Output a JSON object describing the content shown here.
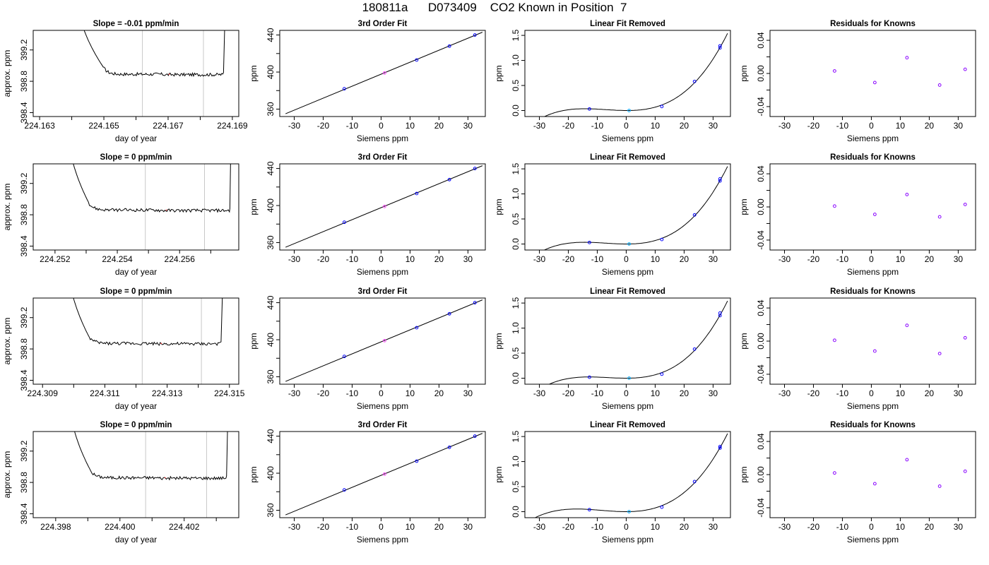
{
  "page_title": "180811a      D073409    CO2 Known in Position  7",
  "colors": {
    "frame": "#000000",
    "line": "#000000",
    "vline": "#c8c8c8",
    "blue": "#0000ff",
    "cyan": "#00aaff",
    "magenta": "#ff44ff",
    "purple": "#8800ff",
    "red": "#ff2222"
  },
  "chart_data": [
    {
      "type": "line",
      "title": "Slope =  -0.01  ppm/min",
      "xlabel": "day of year",
      "ylabel": "approx. ppm",
      "xlim": [
        224.1628,
        224.1692
      ],
      "ylim": [
        398.35,
        399.45
      ],
      "xticks": [
        224.163,
        224.164,
        224.165,
        224.166,
        224.167,
        224.168,
        224.169
      ],
      "xticklabels": [
        "224.163",
        "",
        "224.165",
        "",
        "224.167",
        "",
        "224.169"
      ],
      "yticks": [
        398.4,
        398.8,
        399.2
      ],
      "yticklabels": [
        "398.4",
        "398.8",
        "399.2"
      ],
      "vlines": [
        224.1662,
        224.1681
      ],
      "plateau": [
        224.165,
        224.1687
      ],
      "plateau_level": 398.89,
      "edge_top": 399.6
    },
    {
      "type": "scatter",
      "title": "3rd Order Fit",
      "xlabel": "Siemens ppm",
      "ylabel": "ppm",
      "xlim": [
        -35,
        36
      ],
      "ylim": [
        352,
        445
      ],
      "xticks": [
        -30,
        -20,
        -10,
        0,
        10,
        20,
        30
      ],
      "xticklabels": [
        "-30",
        "-20",
        "-10",
        "0",
        "10",
        "20",
        "30"
      ],
      "yticks": [
        360,
        380,
        400,
        420,
        440
      ],
      "yticklabels": [
        "360",
        "",
        "400",
        "",
        "440"
      ],
      "points": [
        [
          -12.7,
          382
        ],
        [
          1.2,
          399
        ],
        [
          12.3,
          413
        ],
        [
          23.6,
          428
        ],
        [
          32.4,
          440
        ]
      ],
      "fit_line": [
        [
          -33,
          355
        ],
        [
          35,
          443
        ]
      ]
    },
    {
      "type": "scatter",
      "title": "Linear Fit Removed",
      "xlabel": "Siemens ppm",
      "ylabel": "ppm",
      "xlim": [
        -35,
        36
      ],
      "ylim": [
        -0.12,
        1.6
      ],
      "xticks": [
        -30,
        -20,
        -10,
        0,
        10,
        20,
        30
      ],
      "xticklabels": [
        "-30",
        "-20",
        "-10",
        "0",
        "10",
        "20",
        "30"
      ],
      "yticks": [
        0,
        0.5,
        1.0,
        1.5
      ],
      "yticklabels": [
        "0.0",
        "0.5",
        "1.0",
        "1.5"
      ],
      "points": [
        [
          -12.7,
          0.03
        ],
        [
          1.0,
          0.0
        ],
        [
          12.3,
          0.08
        ],
        [
          23.6,
          0.58
        ],
        [
          32.4,
          1.25
        ],
        [
          32.4,
          1.29
        ]
      ],
      "curve_range": [
        -33,
        35
      ]
    },
    {
      "type": "scatter",
      "title": "Residuals for Knowns",
      "xlabel": "Siemens ppm",
      "ylabel": "ppm",
      "xlim": [
        -35,
        36
      ],
      "ylim": [
        -0.052,
        0.052
      ],
      "xticks": [
        -30,
        -20,
        -10,
        0,
        10,
        20,
        30
      ],
      "xticklabels": [
        "-30",
        "-20",
        "-10",
        "0",
        "10",
        "20",
        "30"
      ],
      "yticks": [
        -0.04,
        -0.02,
        0,
        0.02,
        0.04
      ],
      "yticklabels": [
        "-0.04",
        "",
        "0.00",
        "",
        "0.04"
      ],
      "points": [
        [
          -12.7,
          0.003
        ],
        [
          1.2,
          -0.011
        ],
        [
          12.3,
          0.019
        ],
        [
          23.6,
          -0.014
        ],
        [
          32.4,
          0.005
        ]
      ]
    },
    {
      "type": "line",
      "title": "Slope =  0  ppm/min",
      "xlabel": "day of year",
      "ylabel": "approx. ppm",
      "xlim": [
        224.2513,
        224.2579
      ],
      "ylim": [
        398.35,
        399.45
      ],
      "xticks": [
        224.252,
        224.253,
        224.254,
        224.255,
        224.256,
        224.257
      ],
      "xticklabels": [
        "224.252",
        "",
        "224.254",
        "",
        "224.256",
        ""
      ],
      "yticks": [
        398.4,
        398.8,
        399.2
      ],
      "yticklabels": [
        "398.4",
        "398.8",
        "399.2"
      ],
      "vlines": [
        224.2549,
        224.2568
      ],
      "plateau": [
        224.2531,
        224.2576
      ],
      "plateau_level": 398.86,
      "edge_top": 399.6
    },
    {
      "type": "scatter",
      "title": "3rd Order Fit",
      "xlabel": "Siemens ppm",
      "ylabel": "ppm",
      "xlim": [
        -35,
        36
      ],
      "ylim": [
        352,
        445
      ],
      "xticks": [
        -30,
        -20,
        -10,
        0,
        10,
        20,
        30
      ],
      "xticklabels": [
        "-30",
        "-20",
        "-10",
        "0",
        "10",
        "20",
        "30"
      ],
      "yticks": [
        360,
        380,
        400,
        420,
        440
      ],
      "yticklabels": [
        "360",
        "",
        "400",
        "",
        "440"
      ],
      "points": [
        [
          -12.7,
          382
        ],
        [
          1.2,
          399
        ],
        [
          12.3,
          413
        ],
        [
          23.6,
          428
        ],
        [
          32.4,
          440
        ]
      ],
      "fit_line": [
        [
          -33,
          355
        ],
        [
          35,
          443
        ]
      ]
    },
    {
      "type": "scatter",
      "title": "Linear Fit Removed",
      "xlabel": "Siemens ppm",
      "ylabel": "ppm",
      "xlim": [
        -35,
        36
      ],
      "ylim": [
        -0.12,
        1.6
      ],
      "xticks": [
        -30,
        -20,
        -10,
        0,
        10,
        20,
        30
      ],
      "xticklabels": [
        "-30",
        "-20",
        "-10",
        "0",
        "10",
        "20",
        "30"
      ],
      "yticks": [
        0,
        0.5,
        1.0,
        1.5
      ],
      "yticklabels": [
        "0.0",
        "0.5",
        "1.0",
        "1.5"
      ],
      "points": [
        [
          -12.7,
          0.03
        ],
        [
          1.0,
          0.0
        ],
        [
          12.3,
          0.09
        ],
        [
          23.6,
          0.58
        ],
        [
          32.4,
          1.26
        ],
        [
          32.4,
          1.3
        ]
      ],
      "curve_range": [
        -33,
        35
      ]
    },
    {
      "type": "scatter",
      "title": "Residuals for Knowns",
      "xlabel": "Siemens ppm",
      "ylabel": "ppm",
      "xlim": [
        -35,
        36
      ],
      "ylim": [
        -0.052,
        0.052
      ],
      "xticks": [
        -30,
        -20,
        -10,
        0,
        10,
        20,
        30
      ],
      "xticklabels": [
        "-30",
        "-20",
        "-10",
        "0",
        "10",
        "20",
        "30"
      ],
      "yticks": [
        -0.04,
        -0.02,
        0,
        0.02,
        0.04
      ],
      "yticklabels": [
        "-0.04",
        "",
        "0.00",
        "",
        "0.04"
      ],
      "points": [
        [
          -12.7,
          0.001
        ],
        [
          1.2,
          -0.009
        ],
        [
          12.3,
          0.015
        ],
        [
          23.6,
          -0.012
        ],
        [
          32.4,
          0.003
        ]
      ]
    },
    {
      "type": "line",
      "title": "Slope =  0  ppm/min",
      "xlabel": "day of year",
      "ylabel": "approx. ppm",
      "xlim": [
        224.3087,
        224.3153
      ],
      "ylim": [
        398.35,
        399.45
      ],
      "xticks": [
        224.309,
        224.31,
        224.311,
        224.312,
        224.313,
        224.314,
        224.315
      ],
      "xticklabels": [
        "224.309",
        "",
        "224.311",
        "",
        "224.313",
        "",
        "224.315"
      ],
      "yticks": [
        398.4,
        398.8,
        399.2
      ],
      "yticklabels": [
        "398.4",
        "398.8",
        "399.2"
      ],
      "vlines": [
        224.3122,
        224.3141
      ],
      "plateau": [
        224.3105,
        224.3147
      ],
      "plateau_level": 398.87,
      "edge_top": 399.6
    },
    {
      "type": "scatter",
      "title": "3rd Order Fit",
      "xlabel": "Siemens ppm",
      "ylabel": "ppm",
      "xlim": [
        -35,
        36
      ],
      "ylim": [
        352,
        445
      ],
      "xticks": [
        -30,
        -20,
        -10,
        0,
        10,
        20,
        30
      ],
      "xticklabels": [
        "-30",
        "-20",
        "-10",
        "0",
        "10",
        "20",
        "30"
      ],
      "yticks": [
        360,
        380,
        400,
        420,
        440
      ],
      "yticklabels": [
        "360",
        "",
        "400",
        "",
        "440"
      ],
      "points": [
        [
          -12.7,
          382
        ],
        [
          1.2,
          399
        ],
        [
          12.3,
          413
        ],
        [
          23.6,
          428
        ],
        [
          32.4,
          440
        ]
      ],
      "fit_line": [
        [
          -33,
          355
        ],
        [
          35,
          443
        ]
      ]
    },
    {
      "type": "scatter",
      "title": "Linear Fit Removed",
      "xlabel": "Siemens ppm",
      "ylabel": "ppm",
      "xlim": [
        -35,
        36
      ],
      "ylim": [
        -0.12,
        1.6
      ],
      "xticks": [
        -30,
        -20,
        -10,
        0,
        10,
        20,
        30
      ],
      "xticklabels": [
        "-30",
        "-20",
        "-10",
        "0",
        "10",
        "20",
        "30"
      ],
      "yticks": [
        0,
        0.5,
        1.0,
        1.5
      ],
      "yticklabels": [
        "0.0",
        "0.5",
        "1.0",
        "1.5"
      ],
      "points": [
        [
          -12.7,
          0.02
        ],
        [
          1.0,
          0.0
        ],
        [
          12.3,
          0.08
        ],
        [
          23.6,
          0.58
        ],
        [
          32.4,
          1.25
        ],
        [
          32.4,
          1.3
        ]
      ],
      "curve_range": [
        -33,
        35
      ]
    },
    {
      "type": "scatter",
      "title": "Residuals for Knowns",
      "xlabel": "Siemens ppm",
      "ylabel": "ppm",
      "xlim": [
        -35,
        36
      ],
      "ylim": [
        -0.052,
        0.052
      ],
      "xticks": [
        -30,
        -20,
        -10,
        0,
        10,
        20,
        30
      ],
      "xticklabels": [
        "-30",
        "-20",
        "-10",
        "0",
        "10",
        "20",
        "30"
      ],
      "yticks": [
        -0.04,
        -0.02,
        0,
        0.02,
        0.04
      ],
      "yticklabels": [
        "-0.04",
        "",
        "0.00",
        "",
        "0.04"
      ],
      "points": [
        [
          -12.7,
          0.001
        ],
        [
          1.2,
          -0.012
        ],
        [
          12.3,
          0.019
        ],
        [
          23.6,
          -0.015
        ],
        [
          32.4,
          0.004
        ]
      ]
    },
    {
      "type": "line",
      "title": "Slope =  0  ppm/min",
      "xlabel": "day of year",
      "ylabel": "approx. ppm",
      "xlim": [
        224.3973,
        224.4037
      ],
      "ylim": [
        398.35,
        399.45
      ],
      "xticks": [
        224.398,
        224.399,
        224.4,
        224.401,
        224.402,
        224.403
      ],
      "xticklabels": [
        "224.398",
        "",
        "224.400",
        "",
        "224.402",
        ""
      ],
      "yticks": [
        398.4,
        398.8,
        399.2
      ],
      "yticklabels": [
        "398.4",
        "398.8",
        "399.2"
      ],
      "vlines": [
        224.4008,
        224.4027
      ],
      "plateau": [
        224.3991,
        224.4033
      ],
      "plateau_level": 398.86,
      "edge_top": 399.6
    },
    {
      "type": "scatter",
      "title": "3rd Order Fit",
      "xlabel": "Siemens ppm",
      "ylabel": "ppm",
      "xlim": [
        -35,
        36
      ],
      "ylim": [
        352,
        445
      ],
      "xticks": [
        -30,
        -20,
        -10,
        0,
        10,
        20,
        30
      ],
      "xticklabels": [
        "-30",
        "-20",
        "-10",
        "0",
        "10",
        "20",
        "30"
      ],
      "yticks": [
        360,
        380,
        400,
        420,
        440
      ],
      "yticklabels": [
        "360",
        "",
        "400",
        "",
        "440"
      ],
      "points": [
        [
          -12.7,
          382
        ],
        [
          1.2,
          399
        ],
        [
          12.3,
          413
        ],
        [
          23.6,
          428
        ],
        [
          32.4,
          440
        ]
      ],
      "fit_line": [
        [
          -33,
          355
        ],
        [
          35,
          443
        ]
      ]
    },
    {
      "type": "scatter",
      "title": "Linear Fit Removed",
      "xlabel": "Siemens ppm",
      "ylabel": "ppm",
      "xlim": [
        -35,
        36
      ],
      "ylim": [
        -0.12,
        1.6
      ],
      "xticks": [
        -30,
        -20,
        -10,
        0,
        10,
        20,
        30
      ],
      "xticklabels": [
        "-30",
        "-20",
        "-10",
        "0",
        "10",
        "20",
        "30"
      ],
      "yticks": [
        0,
        0.5,
        1.0,
        1.5
      ],
      "yticklabels": [
        "0.0",
        "0.5",
        "1.0",
        "1.5"
      ],
      "points": [
        [
          -12.7,
          0.04
        ],
        [
          1.0,
          0.0
        ],
        [
          12.3,
          0.09
        ],
        [
          23.6,
          0.6
        ],
        [
          32.4,
          1.27
        ],
        [
          32.4,
          1.3
        ]
      ],
      "curve_range": [
        -33,
        35
      ]
    },
    {
      "type": "scatter",
      "title": "Residuals for Knowns",
      "xlabel": "Siemens ppm",
      "ylabel": "ppm",
      "xlim": [
        -35,
        36
      ],
      "ylim": [
        -0.052,
        0.052
      ],
      "xticks": [
        -30,
        -20,
        -10,
        0,
        10,
        20,
        30
      ],
      "xticklabels": [
        "-30",
        "-20",
        "-10",
        "0",
        "10",
        "20",
        "30"
      ],
      "yticks": [
        -0.04,
        -0.02,
        0,
        0.02,
        0.04
      ],
      "yticklabels": [
        "-0.04",
        "",
        "0.00",
        "",
        "0.04"
      ],
      "points": [
        [
          -12.7,
          0.002
        ],
        [
          1.2,
          -0.011
        ],
        [
          12.3,
          0.018
        ],
        [
          23.6,
          -0.014
        ],
        [
          32.4,
          0.004
        ]
      ]
    }
  ]
}
